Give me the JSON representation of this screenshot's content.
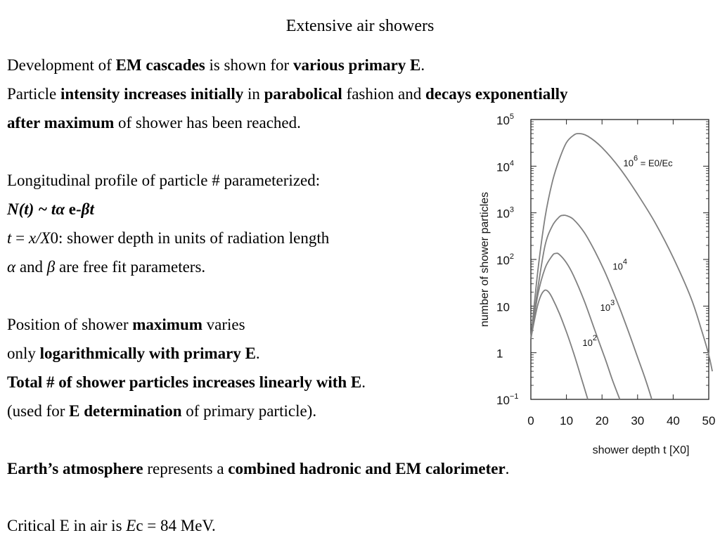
{
  "slide": {
    "title": "Extensive air showers",
    "intro": {
      "l1_a": "Development of ",
      "l1_b": "EM cascades",
      "l1_c": " is shown for ",
      "l1_d": "various primary E",
      "l1_e": ".",
      "l2_a": "Particle ",
      "l2_b": "intensity increases initially",
      "l2_c": " in ",
      "l2_d": "parabolical",
      "l2_e": " fashion and ",
      "l2_f": "decays exponentially",
      "l3_a": "after maximum",
      "l3_b": " of shower has been reached."
    },
    "profile": {
      "l1": "Longitudinal profile of particle # parameterized:",
      "f_a": "N(t) ~ tα",
      "f_b": " e-",
      "f_c": "βt",
      "t_a": "t",
      "t_b": " = ",
      "t_c": "x/X",
      "t_d": "0: shower depth in units of  radiation length",
      "p_a": "α",
      "p_b": " and ",
      "p_c": "β",
      "p_d": " are free fit parameters."
    },
    "maximum": {
      "l1_a": "Position of shower ",
      "l1_b": "maximum",
      "l1_c": " varies",
      "l2_a": "only ",
      "l2_b": "logarithmically with primary E",
      "l2_c": ".",
      "l3_a": "Total # of shower particles increases linearly with E",
      "l3_b": ".",
      "l4_a": "(used for ",
      "l4_b": "E determination",
      "l4_c": " of primary particle)."
    },
    "atmosphere": {
      "a": "Earth’s atmosphere",
      "b": " represents a ",
      "c": "combined hadronic and EM calorimeter",
      "d": "."
    },
    "critical": {
      "a": "Critical E in air is ",
      "b": "E",
      "c": "c = 84 MeV."
    }
  },
  "chart_data": {
    "type": "line",
    "xlabel": "shower depth t [X0]",
    "ylabel": "number of shower particles",
    "xlim": [
      0,
      50
    ],
    "ylim": [
      0.1,
      100000
    ],
    "yscale": "log",
    "xticks": [
      "0",
      "10",
      "20",
      "30",
      "40",
      "50"
    ],
    "yticks": [
      {
        "value": 0.1,
        "base": "10",
        "exp": "−1"
      },
      {
        "value": 1,
        "base": "1",
        "exp": ""
      },
      {
        "value": 10,
        "base": "10",
        "exp": ""
      },
      {
        "value": 100,
        "base": "10",
        "exp": "2"
      },
      {
        "value": 1000,
        "base": "10",
        "exp": "3"
      },
      {
        "value": 10000,
        "base": "10",
        "exp": "4"
      },
      {
        "value": 100000,
        "base": "10",
        "exp": "5"
      }
    ],
    "line_color": "#808080",
    "series": [
      {
        "label_base": "10",
        "label_exp": "2",
        "label_suffix": "",
        "label_at": [
          14.5,
          1.4
        ],
        "points": [
          [
            0,
            2
          ],
          [
            1,
            5
          ],
          [
            2,
            11
          ],
          [
            3,
            18
          ],
          [
            4,
            22
          ],
          [
            5,
            20
          ],
          [
            6,
            15
          ],
          [
            8,
            7
          ],
          [
            10,
            2.8
          ],
          [
            12,
            1
          ],
          [
            14,
            0.32
          ],
          [
            16,
            0.1
          ]
        ]
      },
      {
        "label_base": "10",
        "label_exp": "3",
        "label_suffix": "",
        "label_at": [
          19.5,
          8
        ],
        "points": [
          [
            0,
            2
          ],
          [
            2,
            18
          ],
          [
            4,
            65
          ],
          [
            6,
            120
          ],
          [
            7,
            135
          ],
          [
            8,
            128
          ],
          [
            10,
            85
          ],
          [
            12,
            45
          ],
          [
            15,
            13
          ],
          [
            18,
            3
          ],
          [
            21,
            0.7
          ],
          [
            23,
            0.25
          ],
          [
            25,
            0.1
          ]
        ]
      },
      {
        "label_base": "10",
        "label_exp": "4",
        "label_suffix": "",
        "label_at": [
          23,
          60
        ],
        "points": [
          [
            0,
            2
          ],
          [
            2,
            25
          ],
          [
            4,
            200
          ],
          [
            6,
            520
          ],
          [
            8,
            820
          ],
          [
            9,
            880
          ],
          [
            10,
            870
          ],
          [
            12,
            720
          ],
          [
            15,
            380
          ],
          [
            18,
            150
          ],
          [
            21,
            50
          ],
          [
            24,
            14
          ],
          [
            27,
            3.5
          ],
          [
            30,
            0.8
          ],
          [
            32,
            0.3
          ],
          [
            34,
            0.1
          ]
        ]
      },
      {
        "label_base": "10",
        "label_exp": "6",
        "label_suffix": " = E0/Ec",
        "label_at": [
          26,
          10000
        ],
        "points": [
          [
            0,
            2
          ],
          [
            2,
            60
          ],
          [
            4,
            800
          ],
          [
            6,
            4500
          ],
          [
            8,
            14000
          ],
          [
            10,
            32000
          ],
          [
            12,
            46000
          ],
          [
            13.5,
            50000
          ],
          [
            16,
            44000
          ],
          [
            20,
            25000
          ],
          [
            25,
            9000
          ],
          [
            30,
            2500
          ],
          [
            35,
            600
          ],
          [
            40,
            110
          ],
          [
            45,
            15
          ],
          [
            48,
            3
          ],
          [
            50,
            0.9
          ],
          [
            51,
            0.4
          ]
        ]
      }
    ]
  }
}
